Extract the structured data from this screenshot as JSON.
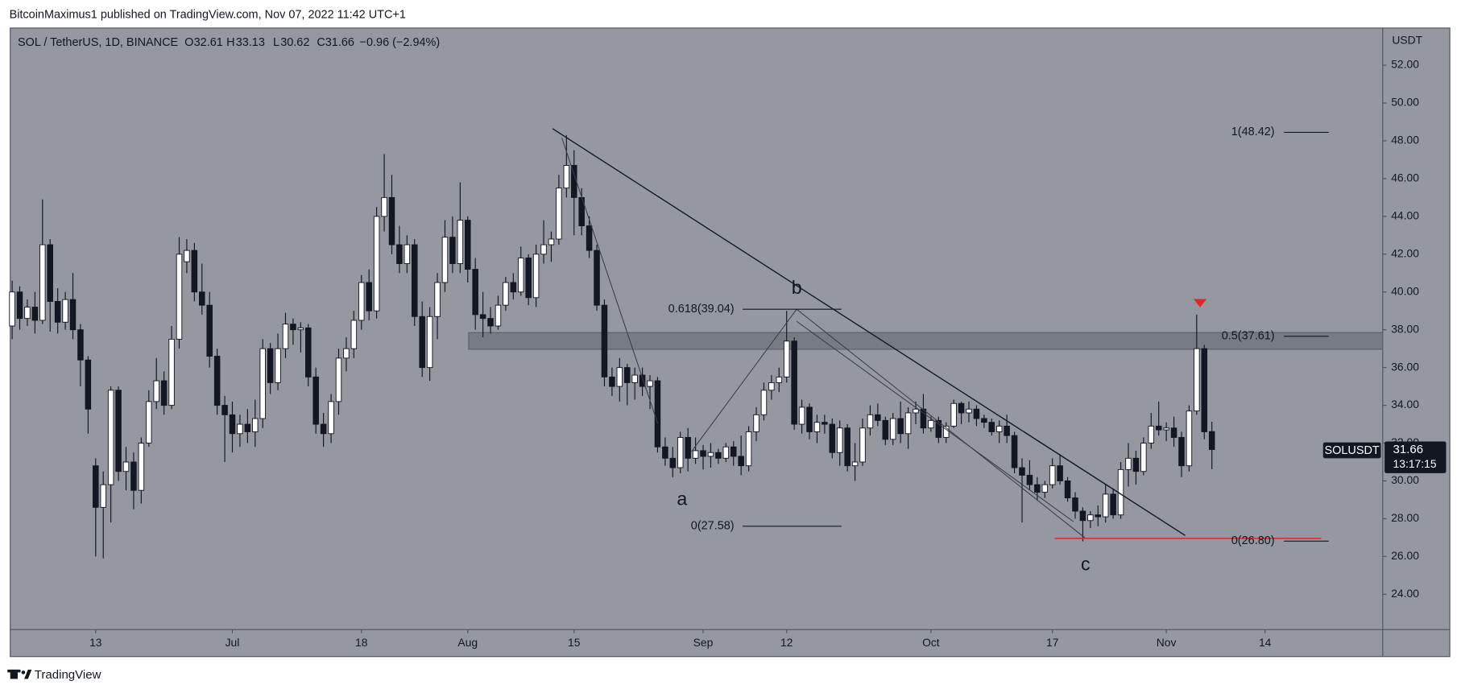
{
  "header": {
    "publisher": "BitcoinMaximus1 published on TradingView.com, Nov 07, 2022 11:42 UTC+1",
    "footer": "TradingView"
  },
  "chart_data": {
    "type": "candlestick",
    "title": "SOL / TetherUS, 1D, BINANCE",
    "ohlc_labels": [
      "O",
      "H",
      "L",
      "C"
    ],
    "change": "−0.96 (−2.94%)",
    "symbol": "SOLUSDT",
    "countdown": "13:17:15",
    "currency": "USDT",
    "up_color": "#ffffff",
    "down_color": "#131722",
    "x": [
      0,
      1,
      2,
      3,
      4,
      5,
      6,
      7,
      8,
      9,
      10,
      11,
      12,
      13,
      14,
      15,
      16,
      17,
      18,
      19,
      20,
      21,
      22,
      23,
      24,
      25,
      26,
      27,
      28,
      29,
      30,
      31,
      32,
      33,
      34,
      35,
      36,
      37,
      38,
      39,
      40,
      41,
      42,
      43,
      44,
      45,
      46,
      47,
      48,
      49,
      50,
      51,
      52,
      53,
      54,
      55,
      56,
      57,
      58,
      59,
      60,
      61,
      62,
      63,
      64,
      65,
      66,
      67,
      68,
      69,
      70,
      71,
      72,
      73,
      74,
      75,
      76,
      77,
      78,
      79,
      80,
      81,
      82,
      83,
      84,
      85,
      86,
      87,
      88,
      89,
      90,
      91,
      92,
      93,
      94,
      95,
      96,
      97,
      98,
      99,
      100,
      101,
      102,
      103,
      104,
      105,
      106,
      107,
      108,
      109,
      110,
      111,
      112,
      113,
      114,
      115,
      116,
      117,
      118,
      119,
      120,
      121,
      122,
      123,
      124,
      125,
      126,
      127,
      128,
      129,
      130,
      131,
      132,
      133,
      134,
      135,
      136,
      137,
      138,
      139,
      140,
      141,
      142,
      143,
      144,
      145,
      146,
      147,
      148,
      149,
      150,
      151,
      152,
      153,
      154,
      155,
      156,
      157,
      158
    ],
    "open": [
      38.2,
      40.0,
      38.6,
      39.2,
      38.5,
      42.5,
      39.5,
      38.4,
      39.6,
      38.0,
      36.4,
      30.8,
      28.6,
      29.8,
      34.8,
      30.5,
      31.0,
      29.5,
      32.0,
      34.2,
      35.3,
      34.0,
      37.5,
      41.6,
      42.2,
      40.0,
      39.3,
      36.6,
      34.0,
      33.5,
      32.5,
      33.0,
      32.6,
      33.3,
      37.0,
      35.2,
      37.0,
      38.3,
      38.0,
      38.1,
      35.5,
      33.0,
      32.5,
      34.2,
      36.5,
      37.0,
      38.5,
      40.5,
      39.0,
      44.0,
      45.0,
      42.5,
      41.5,
      42.5,
      38.7,
      36.0,
      38.7,
      40.5,
      42.9,
      41.5,
      43.8,
      41.2,
      38.8,
      38.6,
      38.2,
      39.3,
      40.5,
      40.0,
      41.8,
      39.7,
      42.0,
      42.5,
      42.8,
      45.5,
      46.7,
      45.0,
      43.5,
      42.2,
      39.3,
      35.5,
      35.0,
      36.0,
      35.2,
      35.6,
      35.0,
      35.3,
      31.8,
      31.2,
      30.7,
      32.3,
      31.2,
      31.6,
      31.3,
      31.5,
      31.2,
      31.8,
      31.3,
      30.8,
      32.6,
      33.5,
      34.8,
      35.2,
      35.5,
      37.4,
      33.0,
      33.9,
      32.6,
      33.1,
      33.0,
      31.5,
      32.8,
      30.8,
      31.0,
      32.8,
      33.5,
      33.2,
      32.2,
      33.3,
      32.5,
      33.6,
      33.8,
      32.8,
      33.2,
      32.3,
      32.9,
      34.1,
      33.6,
      33.8,
      33.3,
      33.1,
      32.6,
      32.9,
      32.4,
      30.7,
      30.3,
      29.8,
      29.4,
      29.8,
      30.8,
      30.0,
      29.1,
      28.4,
      27.9,
      28.2,
      28.1,
      29.3,
      28.2,
      30.6,
      31.2,
      30.5,
      32.0,
      32.9,
      32.7,
      32.8,
      32.3,
      30.8,
      33.7,
      37.0,
      32.61
    ],
    "high": [
      40.6,
      40.3,
      39.6,
      40.0,
      44.9,
      42.8,
      40.2,
      40.0,
      41.0,
      38.3,
      36.6,
      31.2,
      30.5,
      35.0,
      35.0,
      31.8,
      31.5,
      32.3,
      34.8,
      36.5,
      35.8,
      38.2,
      42.9,
      42.8,
      42.6,
      41.5,
      40.0,
      37.0,
      34.5,
      34.2,
      33.5,
      33.8,
      34.3,
      37.5,
      37.3,
      37.8,
      38.9,
      38.6,
      38.4,
      38.3,
      36.0,
      33.6,
      34.6,
      37.0,
      37.6,
      39.0,
      40.9,
      41.2,
      44.5,
      47.3,
      46.2,
      43.5,
      43.0,
      42.8,
      39.5,
      39.2,
      41.0,
      43.8,
      44.0,
      45.8,
      44.0,
      41.8,
      40.0,
      39.2,
      39.8,
      40.8,
      41.0,
      42.4,
      42.0,
      42.5,
      43.8,
      43.2,
      46.2,
      48.3,
      47.5,
      45.5,
      44.0,
      42.5,
      39.6,
      36.0,
      36.5,
      36.2,
      36.0,
      36.0,
      35.6,
      35.5,
      32.3,
      31.8,
      32.6,
      32.8,
      32.3,
      31.9,
      32.0,
      31.7,
      32.0,
      32.1,
      32.4,
      32.9,
      33.9,
      35.2,
      35.6,
      36.0,
      39.0,
      37.6,
      34.3,
      34.1,
      33.5,
      33.5,
      33.3,
      33.2,
      33.0,
      32.0,
      33.3,
      34.0,
      34.1,
      33.4,
      33.6,
      34.2,
      33.9,
      34.2,
      34.6,
      33.4,
      33.4,
      33.1,
      34.3,
      34.2,
      34.2,
      34.0,
      33.5,
      33.3,
      33.2,
      33.5,
      32.6,
      31.2,
      31.1,
      30.2,
      30.0,
      31.2,
      31.4,
      30.2,
      29.4,
      28.6,
      28.4,
      28.7,
      29.8,
      29.6,
      31.0,
      32.0,
      31.6,
      32.3,
      33.6,
      34.2,
      33.1,
      33.4,
      32.6,
      34.0,
      38.8,
      37.2,
      33.13
    ],
    "low": [
      37.5,
      38.0,
      38.2,
      37.8,
      38.3,
      37.9,
      37.8,
      38.0,
      37.5,
      35.0,
      32.5,
      26.0,
      25.9,
      27.8,
      30.0,
      29.5,
      28.5,
      28.8,
      31.8,
      33.8,
      33.5,
      33.8,
      37.0,
      41.0,
      39.5,
      38.8,
      36.0,
      33.5,
      31.0,
      31.5,
      31.8,
      32.0,
      31.8,
      32.8,
      34.6,
      34.8,
      36.5,
      37.2,
      36.8,
      35.0,
      32.5,
      31.8,
      32.0,
      33.5,
      35.8,
      36.5,
      38.0,
      38.5,
      38.6,
      43.2,
      42.0,
      41.0,
      41.0,
      38.2,
      35.5,
      35.3,
      37.5,
      40.0,
      41.0,
      41.0,
      40.5,
      38.0,
      37.6,
      37.8,
      38.0,
      39.0,
      39.6,
      39.8,
      39.3,
      39.2,
      41.5,
      41.6,
      42.5,
      45.0,
      43.0,
      43.0,
      41.8,
      39.0,
      35.0,
      34.5,
      34.2,
      34.0,
      34.3,
      34.5,
      33.8,
      31.5,
      30.8,
      30.2,
      30.4,
      30.5,
      30.9,
      30.6,
      30.7,
      30.9,
      31.0,
      30.8,
      30.3,
      30.5,
      32.1,
      33.2,
      34.3,
      34.7,
      35.2,
      32.7,
      32.5,
      32.2,
      32.0,
      32.5,
      31.2,
      30.8,
      30.5,
      30.0,
      30.8,
      32.4,
      32.9,
      31.9,
      31.9,
      32.0,
      31.7,
      33.0,
      32.5,
      32.6,
      32.0,
      32.0,
      32.8,
      33.0,
      33.1,
      32.9,
      32.8,
      32.4,
      32.0,
      32.0,
      30.4,
      27.8,
      29.5,
      29.0,
      29.1,
      29.6,
      29.8,
      28.9,
      28.0,
      26.8,
      27.5,
      27.6,
      27.8,
      28.0,
      28.0,
      29.7,
      29.8,
      30.3,
      31.7,
      32.4,
      32.1,
      31.8,
      30.2,
      30.5,
      33.5,
      32.2,
      30.62
    ],
    "close": [
      40.0,
      38.6,
      39.2,
      38.5,
      42.5,
      39.5,
      38.4,
      39.6,
      38.0,
      36.4,
      33.8,
      28.6,
      29.8,
      34.8,
      30.5,
      31.0,
      29.5,
      32.0,
      34.2,
      35.3,
      34.0,
      37.5,
      42.0,
      42.2,
      40.0,
      39.3,
      36.6,
      34.0,
      33.5,
      32.5,
      33.0,
      32.6,
      33.3,
      37.0,
      35.2,
      37.0,
      38.3,
      38.0,
      38.1,
      35.5,
      33.0,
      32.5,
      34.2,
      36.5,
      37.0,
      38.5,
      40.5,
      39.0,
      44.0,
      45.0,
      42.5,
      41.5,
      42.5,
      38.7,
      36.0,
      38.7,
      40.5,
      42.9,
      41.5,
      43.8,
      41.2,
      38.8,
      38.6,
      38.2,
      39.3,
      40.5,
      40.0,
      41.8,
      39.7,
      42.0,
      42.5,
      42.8,
      45.5,
      46.7,
      45.0,
      43.5,
      42.2,
      39.3,
      35.5,
      35.0,
      36.0,
      35.2,
      35.6,
      35.0,
      35.3,
      31.8,
      31.2,
      30.7,
      32.3,
      31.2,
      31.6,
      31.3,
      31.5,
      31.2,
      31.8,
      31.3,
      30.8,
      32.6,
      33.5,
      34.8,
      35.2,
      35.5,
      37.4,
      33.0,
      33.9,
      32.6,
      33.1,
      33.0,
      31.5,
      32.8,
      30.8,
      31.0,
      32.8,
      33.5,
      33.2,
      32.2,
      33.3,
      32.5,
      33.6,
      33.8,
      32.8,
      33.2,
      32.3,
      32.9,
      34.1,
      33.6,
      33.8,
      33.3,
      33.1,
      32.6,
      32.9,
      32.4,
      30.7,
      30.3,
      29.8,
      29.4,
      29.8,
      30.8,
      30.0,
      29.1,
      28.4,
      27.9,
      28.2,
      28.1,
      29.3,
      28.2,
      30.6,
      31.2,
      30.5,
      32.0,
      32.9,
      32.7,
      32.8,
      32.3,
      30.8,
      33.7,
      37.0,
      32.6,
      31.66
    ],
    "xlim": [
      -0.25,
      180.5
    ],
    "xticks": [
      {
        "value": 11,
        "label": "13"
      },
      {
        "value": 29,
        "label": "Jul"
      },
      {
        "value": 46,
        "label": "18"
      },
      {
        "value": 60,
        "label": "Aug"
      },
      {
        "value": 74,
        "label": "15"
      },
      {
        "value": 91,
        "label": "Sep"
      },
      {
        "value": 102,
        "label": "12"
      },
      {
        "value": 121,
        "label": "Oct"
      },
      {
        "value": 137,
        "label": "17"
      },
      {
        "value": 152,
        "label": "Nov"
      },
      {
        "value": 165,
        "label": "14"
      }
    ],
    "ylim": [
      22.13,
      53.97
    ],
    "yticks": [
      {
        "value": 52,
        "label": "52.00"
      },
      {
        "value": 50,
        "label": "50.00"
      },
      {
        "value": 48,
        "label": "48.00"
      },
      {
        "value": 46,
        "label": "46.00"
      },
      {
        "value": 44,
        "label": "44.00"
      },
      {
        "value": 42,
        "label": "42.00"
      },
      {
        "value": 40,
        "label": "40.00"
      },
      {
        "value": 38,
        "label": "38.00"
      },
      {
        "value": 36,
        "label": "36.00"
      },
      {
        "value": 34,
        "label": "34.00"
      },
      {
        "value": 32,
        "label": "32.00"
      },
      {
        "value": 30,
        "label": "30.00"
      },
      {
        "value": 28,
        "label": "28.00"
      },
      {
        "value": 26,
        "label": "26.00"
      },
      {
        "value": 24,
        "label": "24.00"
      }
    ],
    "grid": false,
    "annotations": {
      "fib": [
        "1(48.42)",
        "0.618(39.04)",
        "0.5(37.61)",
        "0(27.58)",
        "0(26.80)"
      ],
      "waves": [
        "a",
        "b",
        "c"
      ]
    }
  }
}
